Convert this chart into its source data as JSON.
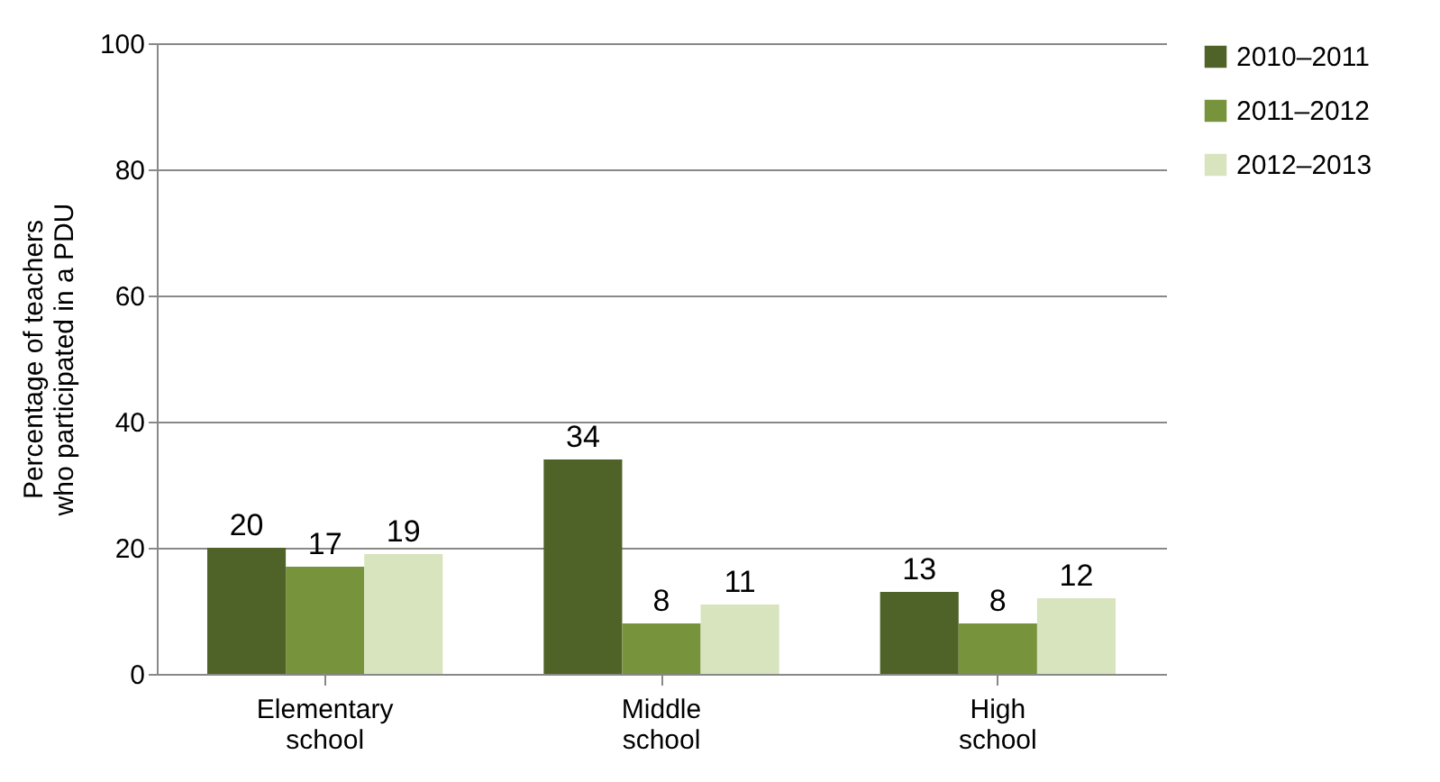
{
  "chart_data": {
    "type": "bar",
    "ylabel": "Percentage of teachers who participated in a PDU",
    "categories": [
      "Elementary school",
      "Middle school",
      "High school"
    ],
    "series": [
      {
        "name": "2010–2011",
        "color": "#4f6228",
        "values": [
          20,
          34,
          13
        ]
      },
      {
        "name": "2011–2012",
        "color": "#77933c",
        "values": [
          17,
          8,
          8
        ]
      },
      {
        "name": "2012–2013",
        "color": "#d7e4bd",
        "values": [
          19,
          11,
          12
        ]
      }
    ],
    "ylim": [
      0,
      100
    ],
    "yticks": [
      0,
      20,
      40,
      60,
      80,
      100
    ],
    "grid": "y",
    "legend": "right",
    "data_labels": true
  }
}
